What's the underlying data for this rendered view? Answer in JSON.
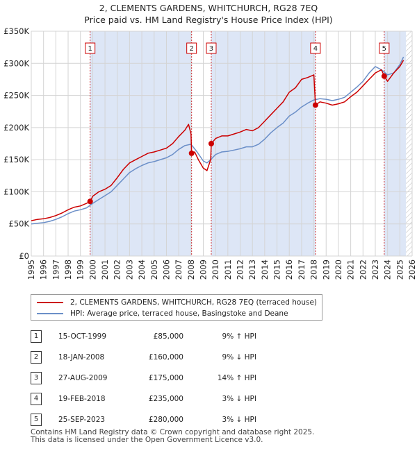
{
  "title_line1": "2, CLEMENTS GARDENS, WHITCHURCH, RG28 7EQ",
  "title_line2": "Price paid vs. HM Land Registry's House Price Index (HPI)",
  "colors": {
    "property": "#cc0000",
    "hpi": "#6b8fc8",
    "shade": "#dde6f6",
    "grid": "#d4d4d4"
  },
  "legend": {
    "property_label": "2, CLEMENTS GARDENS, WHITCHURCH, RG28 7EQ (terraced house)",
    "hpi_label": "HPI: Average price, terraced house, Basingstoke and Deane"
  },
  "sales": [
    {
      "num": "1",
      "date": "15-OCT-1999",
      "price": "£85,000",
      "hpi": "9% ↑ HPI"
    },
    {
      "num": "2",
      "date": "18-JAN-2008",
      "price": "£160,000",
      "hpi": "9% ↓ HPI"
    },
    {
      "num": "3",
      "date": "27-AUG-2009",
      "price": "£175,000",
      "hpi": "14% ↑ HPI"
    },
    {
      "num": "4",
      "date": "19-FEB-2018",
      "price": "£235,000",
      "hpi": "3% ↓ HPI"
    },
    {
      "num": "5",
      "date": "25-SEP-2023",
      "price": "£280,000",
      "hpi": "3% ↓ HPI"
    }
  ],
  "footer": {
    "line1": "Contains HM Land Registry data © Crown copyright and database right 2025.",
    "line2": "This data is licensed under the Open Government Licence v3.0."
  },
  "chart_data": {
    "type": "line",
    "title": "2, CLEMENTS GARDENS, WHITCHURCH, RG28 7EQ — Price paid vs. HM Land Registry's House Price Index (HPI)",
    "xlabel": "",
    "ylabel": "",
    "xlim": [
      1995,
      2026
    ],
    "ylim": [
      0,
      350000
    ],
    "y_ticks": [
      0,
      50000,
      100000,
      150000,
      200000,
      250000,
      300000,
      350000
    ],
    "y_tick_labels": [
      "£0",
      "£50K",
      "£100K",
      "£150K",
      "£200K",
      "£250K",
      "£300K",
      "£350K"
    ],
    "x_ticks": [
      1995,
      1996,
      1997,
      1998,
      1999,
      2000,
      2001,
      2002,
      2003,
      2004,
      2005,
      2006,
      2007,
      2008,
      2009,
      2010,
      2011,
      2012,
      2013,
      2014,
      2015,
      2016,
      2017,
      2018,
      2019,
      2020,
      2021,
      2022,
      2023,
      2024,
      2025,
      2026
    ],
    "x_tick_labels": [
      "1995",
      "1996",
      "1997",
      "1998",
      "1999",
      "2000",
      "2001",
      "2002",
      "2003",
      "2004",
      "2005",
      "2006",
      "2007",
      "2008",
      "2009",
      "2010",
      "2011",
      "2012",
      "2013",
      "2014",
      "2015",
      "2016",
      "2017",
      "2018",
      "2019",
      "2020",
      "2021",
      "2022",
      "2023",
      "2024",
      "2025",
      "2026"
    ],
    "grid": true,
    "shaded_periods": [
      [
        1999.79,
        2008.05
      ],
      [
        2009.65,
        2018.13
      ],
      [
        2023.73,
        2025.5
      ]
    ],
    "future_hatch_from": 2025.5,
    "sale_markers": [
      {
        "label": "1",
        "x": 1999.79,
        "y": 85000
      },
      {
        "label": "2",
        "x": 2008.05,
        "y": 160000
      },
      {
        "label": "3",
        "x": 2009.65,
        "y": 175000
      },
      {
        "label": "4",
        "x": 2018.13,
        "y": 235000
      },
      {
        "label": "5",
        "x": 2023.73,
        "y": 280000
      }
    ],
    "series": [
      {
        "name": "2, CLEMENTS GARDENS, WHITCHURCH, RG28 7EQ (terraced house)",
        "color": "#cc0000",
        "x": [
          1995.0,
          1995.5,
          1996.0,
          1996.5,
          1997.0,
          1997.5,
          1998.0,
          1998.5,
          1999.0,
          1999.5,
          1999.79,
          2000.0,
          2000.5,
          2001.0,
          2001.5,
          2002.0,
          2002.5,
          2003.0,
          2003.5,
          2004.0,
          2004.5,
          2005.0,
          2005.5,
          2006.0,
          2006.5,
          2007.0,
          2007.5,
          2007.8,
          2008.0,
          2008.05,
          2008.3,
          2008.6,
          2009.0,
          2009.3,
          2009.6,
          2009.65,
          2010.0,
          2010.5,
          2011.0,
          2011.5,
          2012.0,
          2012.5,
          2013.0,
          2013.5,
          2014.0,
          2014.5,
          2015.0,
          2015.5,
          2016.0,
          2016.5,
          2017.0,
          2017.5,
          2018.0,
          2018.13,
          2018.5,
          2019.0,
          2019.5,
          2020.0,
          2020.5,
          2021.0,
          2021.5,
          2022.0,
          2022.5,
          2023.0,
          2023.5,
          2023.73,
          2024.0,
          2024.5,
          2025.0,
          2025.3
        ],
        "y": [
          55000,
          57000,
          58000,
          60000,
          63000,
          67000,
          72000,
          76000,
          78000,
          82000,
          85000,
          93000,
          100000,
          104000,
          110000,
          122000,
          135000,
          145000,
          150000,
          155000,
          160000,
          162000,
          165000,
          168000,
          175000,
          186000,
          196000,
          205000,
          190000,
          160000,
          162000,
          150000,
          137000,
          133000,
          150000,
          175000,
          183000,
          187000,
          187000,
          190000,
          193000,
          197000,
          195000,
          200000,
          210000,
          220000,
          230000,
          240000,
          255000,
          262000,
          275000,
          278000,
          282000,
          235000,
          240000,
          238000,
          235000,
          237000,
          240000,
          248000,
          255000,
          265000,
          275000,
          285000,
          290000,
          280000,
          272000,
          285000,
          295000,
          305000
        ]
      },
      {
        "name": "HPI: Average price, terraced house, Basingstoke and Deane",
        "color": "#6b8fc8",
        "x": [
          1995.0,
          1995.5,
          1996.0,
          1996.5,
          1997.0,
          1997.5,
          1998.0,
          1998.5,
          1999.0,
          1999.5,
          2000.0,
          2000.5,
          2001.0,
          2001.5,
          2002.0,
          2002.5,
          2003.0,
          2003.5,
          2004.0,
          2004.5,
          2005.0,
          2005.5,
          2006.0,
          2006.5,
          2007.0,
          2007.5,
          2008.0,
          2008.5,
          2009.0,
          2009.3,
          2009.6,
          2010.0,
          2010.5,
          2011.0,
          2011.5,
          2012.0,
          2012.5,
          2013.0,
          2013.5,
          2014.0,
          2014.5,
          2015.0,
          2015.5,
          2016.0,
          2016.5,
          2017.0,
          2017.5,
          2018.0,
          2018.5,
          2019.0,
          2019.5,
          2020.0,
          2020.5,
          2021.0,
          2021.5,
          2022.0,
          2022.5,
          2023.0,
          2023.5,
          2024.0,
          2024.5,
          2025.0,
          2025.3
        ],
        "y": [
          50000,
          51000,
          52000,
          54000,
          57000,
          61000,
          66000,
          70000,
          72000,
          75000,
          82000,
          88000,
          94000,
          100000,
          110000,
          120000,
          130000,
          136000,
          141000,
          145000,
          147000,
          150000,
          153000,
          158000,
          166000,
          172000,
          174000,
          162000,
          148000,
          145000,
          150000,
          158000,
          162000,
          163000,
          165000,
          167000,
          170000,
          170000,
          174000,
          182000,
          192000,
          200000,
          207000,
          218000,
          224000,
          232000,
          238000,
          243000,
          245000,
          244000,
          242000,
          244000,
          247000,
          255000,
          263000,
          272000,
          285000,
          295000,
          290000,
          282000,
          285000,
          298000,
          310000
        ]
      }
    ]
  }
}
